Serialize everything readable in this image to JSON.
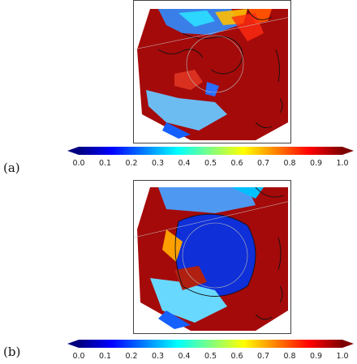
{
  "panels": [
    {
      "label": "(a)"
    },
    {
      "label": "(b)"
    }
  ],
  "colorbar": {
    "min": 0.0,
    "max": 1.0,
    "extend": "both",
    "colormap": "jet",
    "ticks": [
      "0.0",
      "0.1",
      "0.2",
      "0.3",
      "0.4",
      "0.5",
      "0.6",
      "0.7",
      "0.8",
      "0.9",
      "1.0"
    ],
    "tick_values": [
      0.0,
      0.1,
      0.2,
      0.3,
      0.4,
      0.5,
      0.6,
      0.7,
      0.8,
      0.9,
      1.0
    ],
    "colors": [
      "#00007f",
      "#0000ff",
      "#007fff",
      "#00ffff",
      "#7fff7f",
      "#ffff00",
      "#ff7f00",
      "#ff0000",
      "#7f0000"
    ]
  },
  "chart_data": [
    {
      "type": "heatmap",
      "panel": "(a)",
      "projection": "polar stereographic (Arctic)",
      "colorbar_range": [
        0.0,
        1.0
      ],
      "dominant_values": "mostly 0.8–1.0 (dark red) over land, blue/cyan 0.1–0.4 over Arctic Ocean near top"
    },
    {
      "type": "heatmap",
      "panel": "(b)",
      "projection": "polar stereographic (Arctic)",
      "colorbar_range": [
        0.0,
        1.0
      ],
      "dominant_values": "central Arctic Ocean 0.1–0.3 (blue), surrounding land 0.8–1.0 (dark red)"
    }
  ]
}
